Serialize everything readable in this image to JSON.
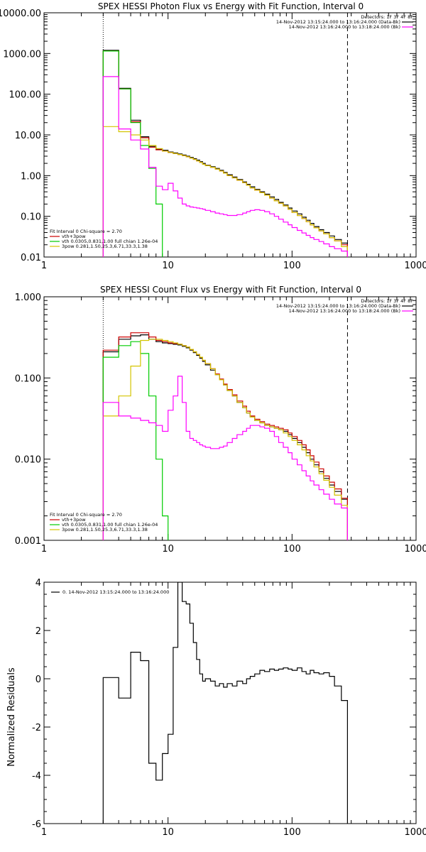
{
  "chart_data": [
    {
      "type": "line",
      "title": "SPEX HESSI Photon Flux vs Energy with Fit Function, Interval 0",
      "xscale": "log",
      "yscale": "log",
      "xlim": [
        1,
        1000
      ],
      "ylim": [
        0.01,
        10000
      ],
      "xticks": [
        "1",
        "10",
        "100",
        "1000"
      ],
      "yticks": [
        "0.01",
        "0.10",
        "1.00",
        "10.00",
        "100.00",
        "1000.00",
        "10000.00"
      ],
      "xlabel": "",
      "ylabel": "",
      "vlines": [
        {
          "x": 3,
          "style": "dotted"
        },
        {
          "x": 280,
          "style": "dashed"
        }
      ],
      "legend_top": {
        "detectors": "Detectors: 1F 3F 4F 8F",
        "entries": [
          {
            "text": "14-Nov-2012 13:15:24.000 to 13:16:24.000 (Data-Bk)",
            "color": "#000000"
          },
          {
            "text": "14-Nov-2012 13:16:24.000 to 13:18:24.000 (Bk)",
            "color": "#ff00ff"
          }
        ]
      },
      "legend_bottom": {
        "header": "Fit Interval 0   Chi-square = 2.70",
        "entries": [
          {
            "text": "vth+3pow",
            "color": "#cc0000"
          },
          {
            "text": "vth 0.0305,0.831,1.00  full chian 1.26e-04",
            "color": "#00cc00"
          },
          {
            "text": "3pow 0.281,1.50,25.3,6.71,33.3,1.38",
            "color": "#d4c400"
          }
        ]
      },
      "series": [
        {
          "color": "#000000",
          "edges": [
            3,
            4,
            5,
            6,
            7,
            8,
            9,
            10,
            11,
            12,
            13,
            14,
            15,
            16,
            17,
            18,
            19,
            20,
            22,
            24,
            26,
            28,
            30,
            33,
            36,
            40,
            43,
            46,
            50,
            55,
            60,
            66,
            72,
            78,
            85,
            93,
            100,
            110,
            120,
            130,
            140,
            150,
            165,
            180,
            200,
            220,
            250,
            280
          ],
          "values": [
            1200,
            140,
            23,
            9,
            5.2,
            4.5,
            4.2,
            3.8,
            3.6,
            3.4,
            3.2,
            3.0,
            2.8,
            2.6,
            2.4,
            2.2,
            2.0,
            1.8,
            1.65,
            1.5,
            1.35,
            1.2,
            1.05,
            0.92,
            0.8,
            0.7,
            0.61,
            0.53,
            0.46,
            0.4,
            0.35,
            0.3,
            0.26,
            0.22,
            0.19,
            0.16,
            0.135,
            0.115,
            0.095,
            0.08,
            0.067,
            0.056,
            0.047,
            0.04,
            0.033,
            0.027,
            0.022
          ]
        },
        {
          "color": "#cc0000",
          "edges": [
            3,
            4,
            5,
            6,
            7,
            8,
            9,
            10,
            11,
            12,
            13,
            14,
            15,
            16,
            17,
            18,
            19,
            20,
            22,
            24,
            26,
            28,
            30,
            33,
            36,
            40,
            43,
            46,
            50,
            55,
            60,
            66,
            72,
            78,
            85,
            93,
            100,
            110,
            120,
            130,
            140,
            150,
            165,
            180,
            200,
            220,
            250,
            280
          ],
          "values": [
            1150,
            135,
            21,
            8.5,
            5.0,
            4.3,
            4.0,
            3.7,
            3.5,
            3.3,
            3.1,
            2.9,
            2.7,
            2.5,
            2.3,
            2.1,
            1.9,
            1.75,
            1.6,
            1.45,
            1.3,
            1.15,
            1.0,
            0.88,
            0.77,
            0.67,
            0.58,
            0.5,
            0.44,
            0.38,
            0.33,
            0.28,
            0.24,
            0.21,
            0.18,
            0.15,
            0.125,
            0.105,
            0.088,
            0.074,
            0.062,
            0.052,
            0.044,
            0.037,
            0.03,
            0.025,
            0.02
          ]
        },
        {
          "color": "#00cc00",
          "edges": [
            3,
            4,
            5,
            6,
            7,
            8,
            9
          ],
          "values": [
            1150,
            135,
            20,
            5.5,
            1.5,
            0.2
          ]
        },
        {
          "color": "#d4c400",
          "edges": [
            3,
            4,
            5,
            6,
            7,
            8,
            9,
            10,
            11,
            12,
            13,
            14,
            15,
            16,
            17,
            18,
            19,
            20,
            22,
            24,
            26,
            28,
            30,
            33,
            36,
            40,
            43,
            46,
            50,
            55,
            60,
            66,
            72,
            78,
            85,
            93,
            100,
            110,
            120,
            130,
            140,
            150,
            165,
            180,
            200,
            220,
            250,
            280
          ],
          "values": [
            16,
            12,
            10,
            7.5,
            5.5,
            4.6,
            4.0,
            3.7,
            3.5,
            3.3,
            3.1,
            2.9,
            2.7,
            2.5,
            2.3,
            2.1,
            1.9,
            1.75,
            1.6,
            1.45,
            1.3,
            1.15,
            1.0,
            0.88,
            0.77,
            0.67,
            0.58,
            0.5,
            0.44,
            0.38,
            0.33,
            0.28,
            0.24,
            0.21,
            0.18,
            0.15,
            0.125,
            0.105,
            0.088,
            0.074,
            0.062,
            0.052,
            0.044,
            0.037,
            0.03,
            0.025,
            0.018
          ]
        },
        {
          "color": "#ff00ff",
          "edges": [
            3,
            4,
            5,
            6,
            7,
            8,
            9,
            10,
            11,
            12,
            13,
            14,
            15,
            16,
            17,
            18,
            19,
            20,
            22,
            24,
            26,
            28,
            30,
            33,
            36,
            40,
            43,
            46,
            50,
            55,
            60,
            66,
            72,
            78,
            85,
            93,
            100,
            110,
            120,
            130,
            140,
            150,
            165,
            180,
            200,
            220,
            250,
            280
          ],
          "values": [
            270,
            14,
            7.5,
            4.5,
            1.6,
            0.55,
            0.45,
            0.65,
            0.42,
            0.28,
            0.2,
            0.18,
            0.17,
            0.165,
            0.16,
            0.155,
            0.15,
            0.14,
            0.13,
            0.12,
            0.115,
            0.11,
            0.105,
            0.105,
            0.11,
            0.12,
            0.13,
            0.14,
            0.145,
            0.14,
            0.13,
            0.115,
            0.1,
            0.085,
            0.072,
            0.062,
            0.053,
            0.045,
            0.039,
            0.034,
            0.03,
            0.027,
            0.024,
            0.021,
            0.018,
            0.016,
            0.014
          ]
        }
      ]
    },
    {
      "type": "line",
      "title": "SPEX HESSI Count Flux vs Energy with Fit Function, Interval 0",
      "xscale": "log",
      "yscale": "log",
      "xlim": [
        1,
        1000
      ],
      "ylim": [
        0.001,
        1
      ],
      "xticks": [
        "1",
        "10",
        "100",
        "1000"
      ],
      "yticks": [
        "0.001",
        "0.010",
        "0.100",
        "1.000"
      ],
      "xlabel": "",
      "ylabel": "",
      "vlines": [
        {
          "x": 3,
          "style": "dotted"
        },
        {
          "x": 280,
          "style": "dashed"
        }
      ],
      "legend_top": {
        "detectors": "Detectors: 1F 3F 4F 8F",
        "entries": [
          {
            "text": "14-Nov-2012 13:15:24.000 to 13:16:24.000 (Data-Bk)",
            "color": "#000000"
          },
          {
            "text": "14-Nov-2012 13:16:24.000 to 13:18:24.000 (Bk)",
            "color": "#ff00ff"
          }
        ]
      },
      "legend_bottom": {
        "header": "Fit Interval 0   Chi-square = 2.70",
        "entries": [
          {
            "text": "vth+3pow",
            "color": "#cc0000"
          },
          {
            "text": "vth 0.0305,0.831,1.00  full chian 1.26e-04",
            "color": "#00cc00"
          },
          {
            "text": "3pow 0.281,1.50,25.3,6.71,33.3,1.38",
            "color": "#d4c400"
          }
        ]
      },
      "series": [
        {
          "color": "#000000",
          "edges": [
            3,
            4,
            5,
            6,
            7,
            8,
            9,
            10,
            11,
            12,
            13,
            14,
            15,
            16,
            17,
            18,
            19,
            20,
            22,
            24,
            26,
            28,
            30,
            33,
            36,
            40,
            43,
            46,
            50,
            55,
            60,
            66,
            72,
            78,
            85,
            93,
            100,
            110,
            120,
            130,
            140,
            150,
            165,
            180,
            200,
            220,
            250,
            280
          ],
          "values": [
            0.21,
            0.3,
            0.33,
            0.34,
            0.3,
            0.28,
            0.27,
            0.265,
            0.26,
            0.255,
            0.245,
            0.235,
            0.22,
            0.205,
            0.19,
            0.175,
            0.16,
            0.145,
            0.125,
            0.11,
            0.095,
            0.082,
            0.07,
            0.06,
            0.05,
            0.043,
            0.037,
            0.033,
            0.03,
            0.028,
            0.026,
            0.025,
            0.024,
            0.023,
            0.022,
            0.02,
            0.018,
            0.016,
            0.014,
            0.012,
            0.01,
            0.0085,
            0.007,
            0.0058,
            0.0048,
            0.004,
            0.0032
          ]
        },
        {
          "color": "#cc0000",
          "edges": [
            3,
            4,
            5,
            6,
            7,
            8,
            9,
            10,
            11,
            12,
            13,
            14,
            15,
            16,
            17,
            18,
            19,
            20,
            22,
            24,
            26,
            28,
            30,
            33,
            36,
            40,
            43,
            46,
            50,
            55,
            60,
            66,
            72,
            78,
            85,
            93,
            100,
            110,
            120,
            130,
            140,
            150,
            165,
            180,
            200,
            220,
            250,
            280
          ],
          "values": [
            0.22,
            0.32,
            0.36,
            0.36,
            0.32,
            0.29,
            0.28,
            0.27,
            0.265,
            0.26,
            0.25,
            0.24,
            0.225,
            0.21,
            0.195,
            0.18,
            0.165,
            0.15,
            0.13,
            0.112,
            0.097,
            0.084,
            0.072,
            0.062,
            0.052,
            0.045,
            0.039,
            0.034,
            0.031,
            0.029,
            0.027,
            0.026,
            0.025,
            0.024,
            0.023,
            0.021,
            0.019,
            0.017,
            0.015,
            0.013,
            0.011,
            0.0092,
            0.0076,
            0.0062,
            0.0052,
            0.0043,
            0.0033
          ]
        },
        {
          "color": "#00cc00",
          "edges": [
            3,
            4,
            5,
            6,
            7,
            8,
            9,
            10
          ],
          "values": [
            0.18,
            0.25,
            0.28,
            0.2,
            0.06,
            0.01,
            0.002
          ]
        },
        {
          "color": "#d4c400",
          "edges": [
            3,
            4,
            5,
            6,
            7,
            8,
            9,
            10,
            11,
            12,
            13,
            14,
            15,
            16,
            17,
            18,
            19,
            20,
            22,
            24,
            26,
            28,
            30,
            33,
            36,
            40,
            43,
            46,
            50,
            55,
            60,
            66,
            72,
            78,
            85,
            93,
            100,
            110,
            120,
            130,
            140,
            150,
            165,
            180,
            200,
            220,
            250,
            280
          ],
          "values": [
            0.034,
            0.06,
            0.14,
            0.29,
            0.3,
            0.3,
            0.29,
            0.28,
            0.27,
            0.26,
            0.25,
            0.24,
            0.225,
            0.21,
            0.195,
            0.18,
            0.165,
            0.15,
            0.13,
            0.11,
            0.095,
            0.082,
            0.07,
            0.06,
            0.05,
            0.043,
            0.037,
            0.033,
            0.03,
            0.028,
            0.026,
            0.025,
            0.024,
            0.023,
            0.021,
            0.019,
            0.017,
            0.015,
            0.013,
            0.011,
            0.0095,
            0.008,
            0.0066,
            0.0055,
            0.0045,
            0.0036,
            0.0027
          ]
        },
        {
          "color": "#ff00ff",
          "edges": [
            3,
            4,
            5,
            6,
            7,
            8,
            9,
            10,
            11,
            12,
            13,
            14,
            15,
            16,
            17,
            18,
            19,
            20,
            22,
            24,
            26,
            28,
            30,
            33,
            36,
            40,
            43,
            46,
            50,
            55,
            60,
            66,
            72,
            78,
            85,
            93,
            100,
            110,
            120,
            130,
            140,
            150,
            165,
            180,
            200,
            220,
            250,
            280
          ],
          "values": [
            0.05,
            0.034,
            0.032,
            0.03,
            0.028,
            0.026,
            0.022,
            0.04,
            0.06,
            0.105,
            0.05,
            0.022,
            0.018,
            0.017,
            0.016,
            0.015,
            0.0145,
            0.014,
            0.0135,
            0.0135,
            0.014,
            0.0145,
            0.016,
            0.018,
            0.02,
            0.022,
            0.024,
            0.026,
            0.026,
            0.025,
            0.024,
            0.022,
            0.019,
            0.016,
            0.014,
            0.012,
            0.01,
            0.0085,
            0.0072,
            0.0062,
            0.0054,
            0.0048,
            0.0042,
            0.0037,
            0.0032,
            0.0028,
            0.0025
          ]
        }
      ]
    },
    {
      "type": "line",
      "title": "",
      "xscale": "log",
      "yscale": "linear",
      "xlim": [
        1,
        1000
      ],
      "ylim": [
        -6,
        4
      ],
      "xticks": [
        "1",
        "10",
        "100",
        "1000"
      ],
      "yticks": [
        "-6",
        "-4",
        "-2",
        "0",
        "2",
        "4"
      ],
      "xlabel": "",
      "ylabel": "Normalized Residuals",
      "legend": "0. 14-Nov-2012 13:15:24.000 to 13:16:24.000",
      "series": [
        {
          "color": "#000000",
          "edges": [
            3,
            4,
            5,
            6,
            7,
            8,
            9,
            10,
            11,
            12,
            13,
            14,
            15,
            16,
            17,
            18,
            19,
            20,
            22,
            24,
            26,
            28,
            30,
            33,
            36,
            40,
            43,
            46,
            50,
            55,
            60,
            66,
            72,
            78,
            85,
            93,
            100,
            110,
            120,
            130,
            140,
            150,
            165,
            180,
            200,
            220,
            250,
            280
          ],
          "values": [
            0.05,
            -0.8,
            1.1,
            0.75,
            -3.5,
            -4.2,
            -3.1,
            -2.3,
            1.3,
            4.0,
            3.2,
            3.1,
            2.3,
            1.5,
            0.8,
            0.2,
            -0.1,
            0.0,
            -0.1,
            -0.3,
            -0.2,
            -0.35,
            -0.2,
            -0.3,
            -0.1,
            -0.2,
            0.0,
            0.1,
            0.2,
            0.35,
            0.3,
            0.4,
            0.35,
            0.4,
            0.45,
            0.4,
            0.35,
            0.45,
            0.3,
            0.2,
            0.35,
            0.25,
            0.2,
            0.25,
            0.1,
            -0.3,
            -0.9
          ]
        }
      ]
    }
  ]
}
